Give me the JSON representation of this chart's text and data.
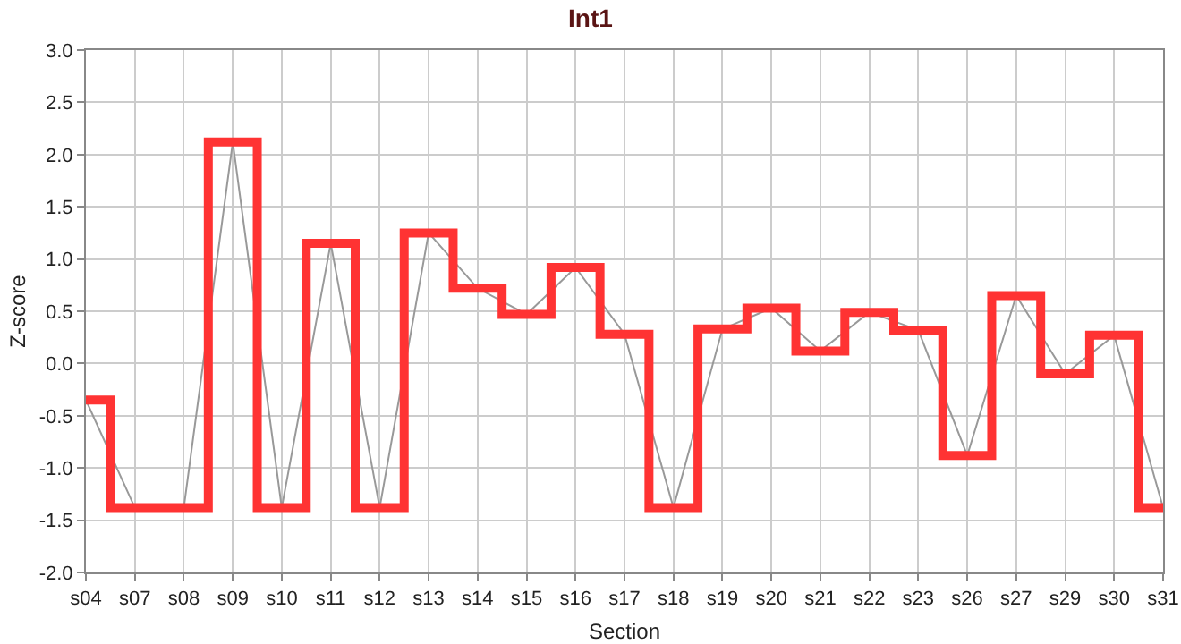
{
  "chart_data": {
    "type": "step",
    "title": "Int1",
    "xlabel": "Section",
    "ylabel": "Z-score",
    "categories": [
      "s04",
      "s07",
      "s08",
      "s09",
      "s10",
      "s11",
      "s12",
      "s13",
      "s14",
      "s15",
      "s16",
      "s17",
      "s18",
      "s19",
      "s20",
      "s21",
      "s22",
      "s23",
      "s26",
      "s27",
      "s29",
      "s30",
      "s31"
    ],
    "series": [
      {
        "type": "line",
        "color": "#999999",
        "values": [
          -0.35,
          -1.38,
          -1.38,
          2.12,
          -1.38,
          1.15,
          -1.38,
          1.25,
          0.72,
          0.47,
          0.92,
          0.28,
          -1.38,
          0.33,
          0.53,
          0.12,
          0.49,
          0.32,
          -0.88,
          0.65,
          -0.1,
          0.27,
          -1.38
        ]
      },
      {
        "color": "#ff3333",
        "values": [
          -0.35,
          -1.38,
          -1.38,
          2.12,
          -1.38,
          1.15,
          -1.38,
          1.25,
          0.72,
          0.47,
          0.92,
          0.28,
          -1.38,
          0.33,
          0.53,
          0.12,
          0.49,
          0.32,
          -0.88,
          0.65,
          -0.1,
          0.27,
          -1.38
        ]
      }
    ],
    "ylim": [
      -2,
      3
    ],
    "yticks": [
      {
        "value": -2,
        "label": "-2.0"
      },
      {
        "value": -1.5,
        "label": "-1.5"
      },
      {
        "value": -1,
        "label": "-1.0"
      },
      {
        "value": -0.5,
        "label": "-0.5"
      },
      {
        "value": 0,
        "label": "0.0"
      },
      {
        "value": 0.5,
        "label": "0.5"
      },
      {
        "value": 1,
        "label": "1.0"
      },
      {
        "value": 1.5,
        "label": "1.5"
      },
      {
        "value": 2,
        "label": "2.0"
      },
      {
        "value": 2.5,
        "label": "2.5"
      },
      {
        "value": 3,
        "label": "3.0"
      }
    ],
    "grid": true
  }
}
